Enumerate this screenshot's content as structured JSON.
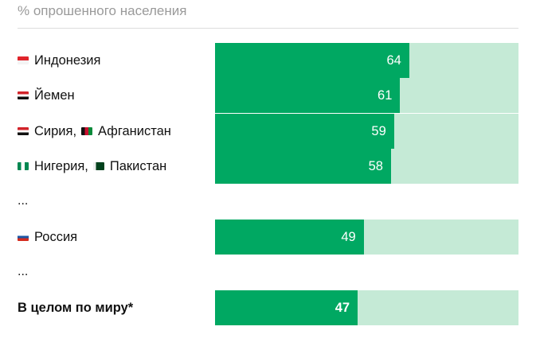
{
  "chart_data": {
    "type": "bar",
    "orientation": "horizontal",
    "title": "% опрошенного населения",
    "xlim": [
      0,
      100
    ],
    "ellipsis": "...",
    "rows": [
      {
        "label": "Индонезия",
        "flags": [
          "indonesia-flag"
        ],
        "value": 64
      },
      {
        "label": "Йемен",
        "flags": [
          "yemen-flag"
        ],
        "value": 61
      },
      {
        "label": "Сирия,",
        "label2": "Афганистан",
        "flags": [
          "syria-flag",
          "afghanistan-flag"
        ],
        "value": 59
      },
      {
        "label": "Нигерия,",
        "label2": "Пакистан",
        "flags": [
          "nigeria-flag",
          "pakistan-flag"
        ],
        "value": 58
      },
      {
        "label": "Россия",
        "flags": [
          "russia-flag"
        ],
        "value": 49
      },
      {
        "label": "В целом по миру*",
        "flags": [],
        "value": 47,
        "bold": true
      }
    ],
    "colors": {
      "bar": "#00a862",
      "track": "#c5ead6"
    }
  }
}
